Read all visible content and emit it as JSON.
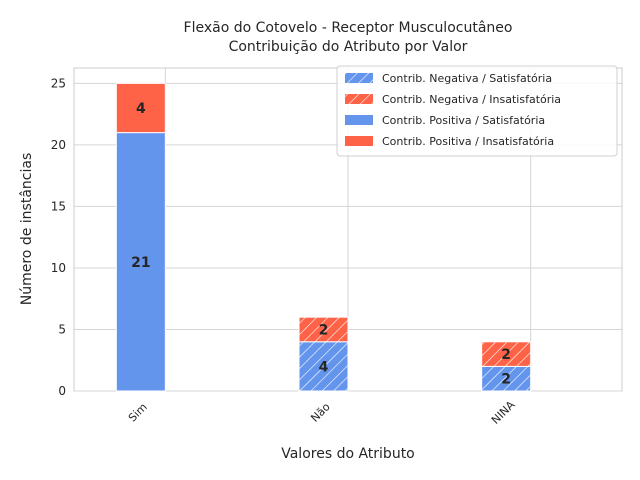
{
  "chart_data": {
    "type": "bar",
    "stacked": true,
    "title_line1": "Flexão do Cotovelo - Receptor Musculocutâneo",
    "title_line2": "Contribuição do Atributo por Valor",
    "xlabel": "Valores do Atributo",
    "ylabel": "Número de instâncias",
    "categories": [
      "Sim",
      "Não",
      "NINA"
    ],
    "ylim": [
      0,
      26.25
    ],
    "yticks": [
      0,
      5,
      10,
      15,
      20,
      25
    ],
    "grid": true,
    "legend_position": "top-right",
    "series": [
      {
        "name": "Contrib. Negativa / Satisfatória",
        "group": "negativa",
        "color": "#6495ED",
        "hatch": true,
        "values": [
          0,
          4,
          2
        ]
      },
      {
        "name": "Contrib. Negativa / Insatisfatória",
        "group": "negativa",
        "color": "#FF6347",
        "hatch": true,
        "values": [
          0,
          2,
          2
        ]
      },
      {
        "name": "Contrib. Positiva / Satisfatória",
        "group": "positiva",
        "color": "#6495ED",
        "hatch": false,
        "values": [
          21,
          0,
          0
        ]
      },
      {
        "name": "Contrib. Positiva / Insatisfatória",
        "group": "positiva",
        "color": "#FF6347",
        "hatch": false,
        "values": [
          4,
          0,
          0
        ]
      }
    ]
  }
}
